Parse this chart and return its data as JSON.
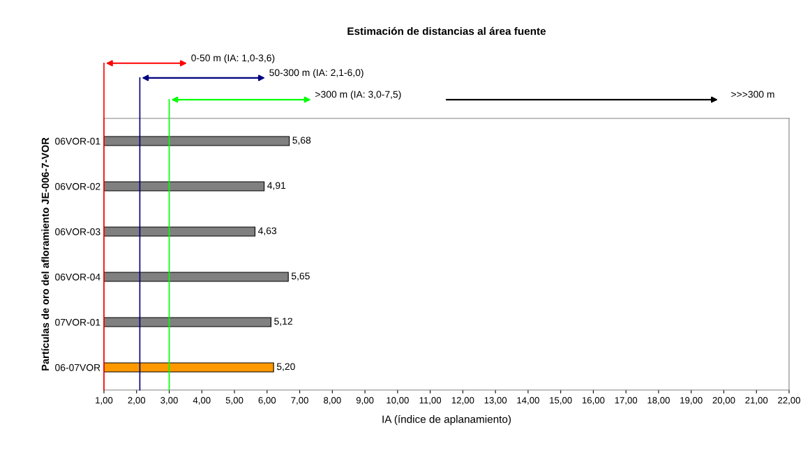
{
  "chart_data": {
    "type": "bar",
    "orientation": "horizontal",
    "title": "Estimación de distancias al área fuente",
    "xlabel": "IA (índice de aplanamiento)",
    "ylabel": "Partículas de oro del afloramiento JE-006-7-VOR",
    "categories": [
      "06VOR-01",
      "06VOR-02",
      "06VOR-03",
      "06VOR-04",
      "07VOR-01",
      "06-07VOR"
    ],
    "values": [
      5.68,
      4.91,
      4.63,
      5.65,
      5.12,
      5.2
    ],
    "value_labels": [
      "5,68",
      "4,91",
      "4,63",
      "5,65",
      "5,12",
      "5,20"
    ],
    "colors": [
      "#808080",
      "#808080",
      "#808080",
      "#808080",
      "#808080",
      "#ff9900"
    ],
    "base": [
      1,
      1,
      1,
      1,
      1,
      1
    ],
    "xlim": [
      1,
      22
    ],
    "xticks": [
      {
        "value": 1,
        "label": "1,00"
      },
      {
        "value": 2,
        "label": "2,00"
      },
      {
        "value": 3,
        "label": "3,00"
      },
      {
        "value": 4,
        "label": "4,00"
      },
      {
        "value": 5,
        "label": "5,00"
      },
      {
        "value": 6,
        "label": "6,00"
      },
      {
        "value": 7,
        "label": "7,00"
      },
      {
        "value": 8,
        "label": "8,00"
      },
      {
        "value": 9,
        "label": "9,00"
      },
      {
        "value": 10,
        "label": "10,00"
      },
      {
        "value": 11,
        "label": "11,00"
      },
      {
        "value": 12,
        "label": "12,00"
      },
      {
        "value": 13,
        "label": "13,00"
      },
      {
        "value": 14,
        "label": "14,00"
      },
      {
        "value": 15,
        "label": "15,00"
      },
      {
        "value": 16,
        "label": "16,00"
      },
      {
        "value": 17,
        "label": "17,00"
      },
      {
        "value": 18,
        "label": "18,00"
      },
      {
        "value": 19,
        "label": "19,00"
      },
      {
        "value": 20,
        "label": "20,00"
      },
      {
        "value": 21,
        "label": "21,00"
      },
      {
        "value": 22,
        "label": "22,00"
      }
    ],
    "ref_lines": [
      {
        "axis": "x",
        "value": 1.0,
        "color": "#ff0000",
        "label": "0-50 m (IA: 1,0-3,6)"
      },
      {
        "axis": "x",
        "value": 2.1,
        "color": "#000080",
        "label": "50-300 m (IA: 2,1-6,0)"
      },
      {
        "axis": "x",
        "value": 3.0,
        "color": "#00ff00",
        "label": ">300 m (IA: 3,0-7,5)"
      }
    ],
    "annotations": [
      ">>>300 m"
    ],
    "grid": false,
    "legend": false
  }
}
